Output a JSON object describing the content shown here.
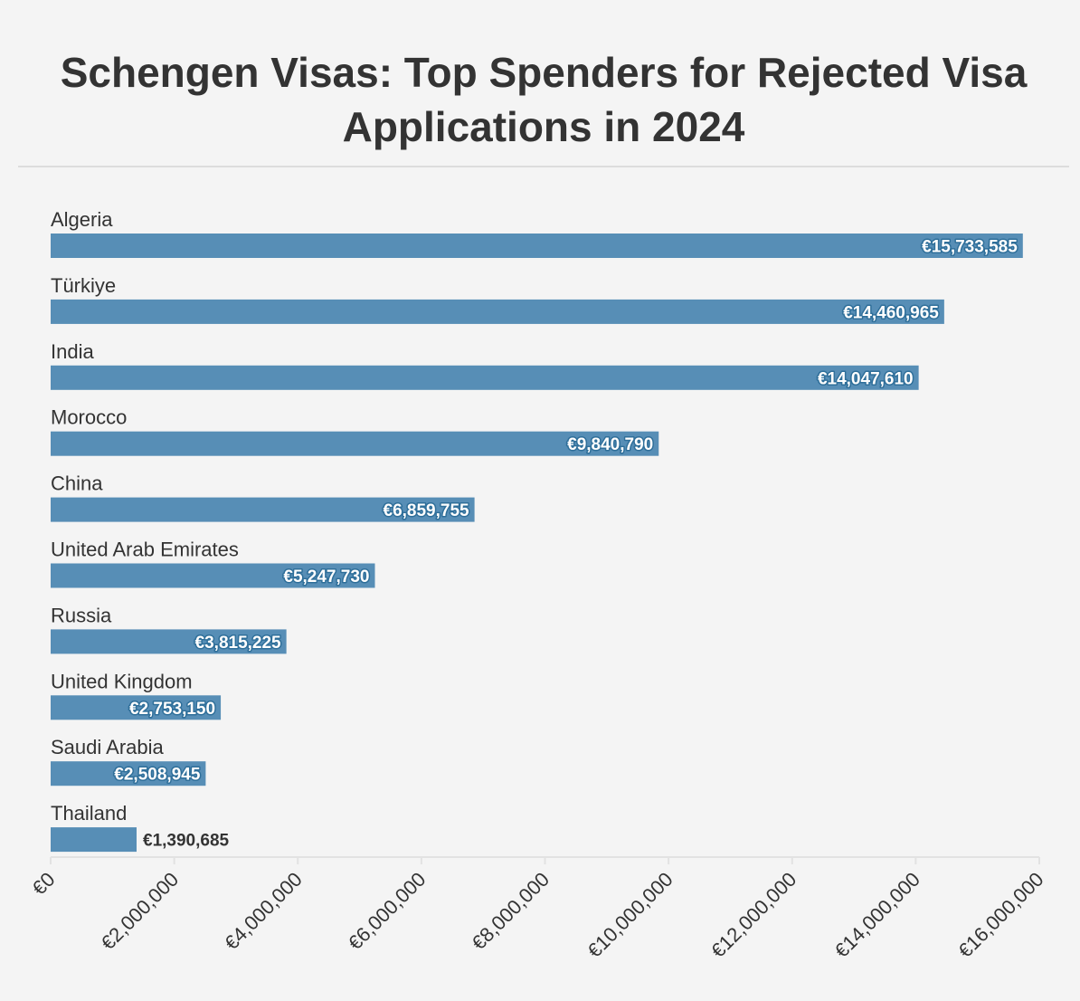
{
  "chart_data": {
    "type": "bar",
    "orientation": "horizontal",
    "title": "Schengen Visas: Top Spenders for Rejected Visa Applications in 2024",
    "categories": [
      "Algeria",
      "Türkiye",
      "India",
      "Morocco",
      "China",
      "United Arab Emirates",
      "Russia",
      "United Kingdom",
      "Saudi Arabia",
      "Thailand"
    ],
    "values": [
      15733585,
      14460965,
      14047610,
      9840790,
      6859755,
      5247730,
      3815225,
      2753150,
      2508945,
      1390685
    ],
    "value_labels": [
      "€15,733,585",
      "€14,460,965",
      "€14,047,610",
      "€9,840,790",
      "€6,859,755",
      "€5,247,730",
      "€3,815,225",
      "€2,753,150",
      "€2,508,945",
      "€1,390,685"
    ],
    "xlim": [
      0,
      16000000
    ],
    "x_ticks": [
      0,
      2000000,
      4000000,
      6000000,
      8000000,
      10000000,
      12000000,
      14000000,
      16000000
    ],
    "x_tick_labels": [
      "€0",
      "€2,000,000",
      "€4,000,000",
      "€6,000,000",
      "€8,000,000",
      "€10,000,000",
      "€12,000,000",
      "€14,000,000",
      "€16,000,000"
    ],
    "xlabel": "",
    "ylabel": "",
    "grid": false,
    "legend": "none",
    "bar_color": "#578eb6",
    "axis_color": "#e2e2e2",
    "label_outline_color": "#2f6f9a"
  }
}
